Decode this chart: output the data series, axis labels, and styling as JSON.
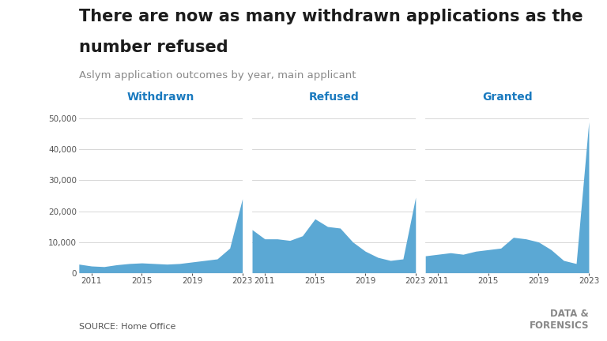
{
  "title_line1": "There are now as many withdrawn applications as the",
  "title_line2": "number refused",
  "subtitle": "Aslym application outcomes by year, main applicant",
  "source": "SOURCE: Home Office",
  "watermark": "DATA &\nFORENSICS",
  "fill_color": "#5ba8d4",
  "fill_alpha": 1.0,
  "line_color": "#5ba8d4",
  "label_color": "#1a7abf",
  "years": [
    2010,
    2011,
    2012,
    2013,
    2014,
    2015,
    2016,
    2017,
    2018,
    2019,
    2020,
    2021,
    2022,
    2023
  ],
  "withdrawn": [
    2800,
    2200,
    2000,
    2600,
    3000,
    3200,
    3000,
    2800,
    3000,
    3500,
    4000,
    4500,
    8000,
    24000
  ],
  "refused": [
    14000,
    11000,
    11000,
    10500,
    12000,
    17500,
    15000,
    14500,
    10000,
    7000,
    5000,
    4000,
    4500,
    24500
  ],
  "granted": [
    5500,
    6000,
    6500,
    6000,
    7000,
    7500,
    8000,
    11500,
    11000,
    10000,
    7500,
    4000,
    3000,
    49000
  ],
  "ylim": [
    0,
    52000
  ],
  "yticks": [
    0,
    10000,
    20000,
    30000,
    40000,
    50000
  ],
  "panel_labels": [
    "Withdrawn",
    "Refused",
    "Granted"
  ],
  "bg_color": "#ffffff",
  "grid_color": "#d0d0d0",
  "title_fontsize": 15,
  "subtitle_fontsize": 9.5,
  "label_fontsize": 10
}
